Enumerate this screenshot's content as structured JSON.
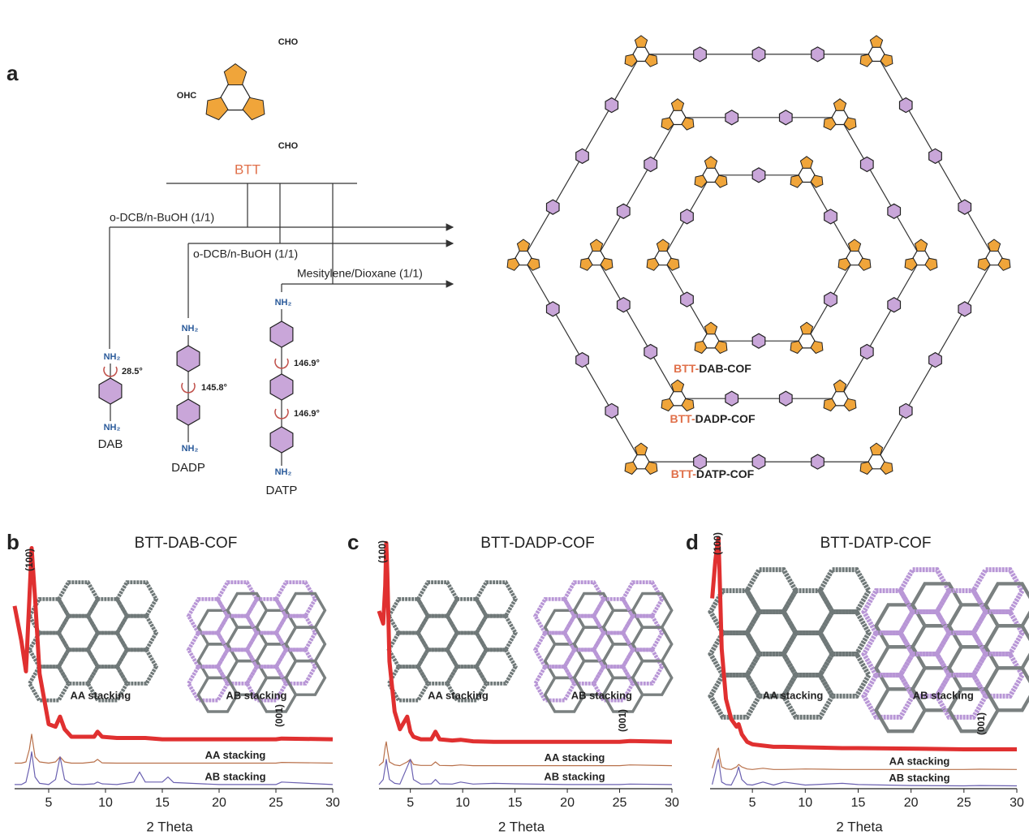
{
  "panel_a": {
    "label": "a",
    "btt": {
      "ohc": "OHC",
      "cho": [
        "CHO",
        "CHO"
      ],
      "name": "BTT"
    },
    "conditions": [
      "o-DCB/n-BuOH (1/1)",
      "o-DCB/n-BuOH (1/1)",
      "Mesitylene/Dioxane (1/1)"
    ],
    "monomers": [
      {
        "name": "DAB",
        "amines": [
          "NH₂",
          "NH₂"
        ],
        "angles": [
          "28.5°"
        ]
      },
      {
        "name": "DADP",
        "amines": [
          "NH₂",
          "NH₂"
        ],
        "angles": [
          "145.8°"
        ]
      },
      {
        "name": "DATP",
        "amines": [
          "NH₂",
          "NH₂"
        ],
        "angles": [
          "146.9°",
          "146.9°"
        ]
      }
    ],
    "cofs": [
      {
        "prefix": "BTT-",
        "name": "DAB-COF"
      },
      {
        "prefix": "BTT-",
        "name": "DADP-COF"
      },
      {
        "prefix": "BTT-",
        "name": "DATP-COF"
      }
    ]
  },
  "chart_data": [
    {
      "type": "line",
      "panel": "b",
      "title": "BTT-DAB-COF",
      "x_label": "2 Theta",
      "annotations": [
        "(100)",
        "(001)"
      ],
      "inset_labels": [
        "AA stacking",
        "AB stacking"
      ],
      "xlim": [
        2,
        30
      ],
      "xticks": [
        5,
        10,
        15,
        20,
        25,
        30
      ],
      "ylim": [
        0,
        100
      ],
      "x": [
        2,
        2.6,
        3.0,
        3.3,
        3.5,
        3.8,
        4.2,
        5,
        5.6,
        6.0,
        6.4,
        7,
        8,
        9,
        9.3,
        9.7,
        11,
        12.5,
        13,
        13.5,
        15,
        15.5,
        16,
        20,
        25,
        25.5,
        30
      ],
      "series": [
        {
          "color": "#e03030",
          "values": [
            72,
            58,
            46,
            75,
            95,
            75,
            45,
            25,
            24,
            28,
            23,
            20,
            20,
            20,
            22,
            20,
            19.5,
            19.5,
            19.5,
            19.5,
            19,
            19,
            19,
            19,
            19,
            19.3,
            19
          ]
        },
        {
          "name": "AA stacking",
          "color": "#b8704a",
          "values": [
            9.5,
            9.5,
            10,
            15,
            21,
            12,
            10,
            9.5,
            10,
            12,
            10,
            9.5,
            9.5,
            10,
            11,
            9.6,
            9.5,
            9.5,
            9.5,
            9.5,
            9.5,
            9.5,
            9.5,
            9.5,
            9.5,
            9.8,
            9.5
          ]
        },
        {
          "name": "AB stacking",
          "color": "#6a60b0",
          "values": [
            1,
            1,
            2,
            8,
            14,
            4,
            1.5,
            1,
            3,
            12,
            3,
            1.2,
            1,
            1.3,
            2,
            1.3,
            1,
            2,
            6,
            2,
            2,
            4,
            1.8,
            1,
            1,
            2,
            1
          ]
        }
      ]
    },
    {
      "type": "line",
      "panel": "c",
      "title": "BTT-DADP-COF",
      "x_label": "2 Theta",
      "annotations": [
        "(100)",
        "(001)"
      ],
      "inset_labels": [
        "AA stacking",
        "AB stacking"
      ],
      "xlim": [
        2,
        30
      ],
      "xticks": [
        5,
        10,
        15,
        20,
        25,
        30
      ],
      "ylim": [
        0,
        100
      ],
      "x": [
        2,
        2.4,
        2.6,
        2.7,
        2.8,
        3,
        3.5,
        4,
        4.7,
        5,
        5.3,
        6,
        7,
        7.4,
        7.8,
        9,
        9.8,
        11,
        13,
        15,
        20,
        25,
        26,
        30
      ],
      "series": [
        {
          "color": "#e03030",
          "values": [
            70,
            65,
            80,
            97,
            85,
            50,
            30,
            23,
            28,
            22,
            20,
            19,
            19,
            22,
            19,
            18.5,
            18.8,
            18.2,
            18,
            18,
            18,
            18,
            18.3,
            18
          ]
        },
        {
          "name": "AA stacking",
          "color": "#b8704a",
          "values": [
            8.5,
            10,
            16,
            18,
            15,
            10,
            8.8,
            8.5,
            10,
            11,
            9,
            8.6,
            8.6,
            10,
            8.6,
            8.5,
            8.8,
            8.5,
            8.5,
            8.5,
            8.5,
            8.5,
            8.8,
            8.5
          ]
        },
        {
          "name": "AB stacking",
          "color": "#6a60b0",
          "values": [
            1,
            3,
            8,
            11,
            8,
            3,
            1.5,
            1.2,
            8,
            11,
            3,
            1.2,
            1.3,
            3,
            1.3,
            1.2,
            2,
            1.2,
            1.5,
            1.3,
            1,
            1,
            1.2,
            1
          ]
        }
      ]
    },
    {
      "type": "line",
      "panel": "d",
      "title": "BTT-DATP-COF",
      "x_label": "2 Theta",
      "annotations": [
        "(100)",
        "(001)"
      ],
      "inset_labels": [
        "AA stacking",
        "AB stacking"
      ],
      "xlim": [
        1,
        30
      ],
      "xticks": [
        5,
        10,
        15,
        20,
        25,
        30
      ],
      "ylim": [
        0,
        100
      ],
      "x": [
        1.2,
        1.5,
        1.7,
        1.8,
        1.9,
        2.1,
        2.5,
        3,
        3.5,
        3.7,
        4,
        4.5,
        5,
        6,
        7,
        8,
        10,
        13.5,
        15,
        20,
        25,
        26.5,
        30
      ],
      "series": [
        {
          "color": "#e03030",
          "values": [
            75,
            90,
            97,
            99,
            85,
            55,
            35,
            27,
            24,
            25,
            21,
            18,
            17,
            16.5,
            16,
            16,
            15.8,
            15.5,
            15.5,
            15.3,
            15,
            15,
            15
          ]
        },
        {
          "name": "AA stacking",
          "color": "#b8704a",
          "values": [
            7.5,
            12,
            15,
            15.5,
            12,
            8,
            7.2,
            7,
            8,
            9,
            8,
            7.2,
            7,
            7.5,
            7,
            7,
            7.2,
            7,
            7,
            7,
            7,
            7.1,
            7
          ]
        },
        {
          "name": "AB stacking",
          "color": "#6a60b0",
          "values": [
            1,
            6,
            10,
            11,
            8,
            2,
            1,
            0.8,
            5,
            8,
            3,
            1,
            0.8,
            2,
            0.8,
            2,
            0.8,
            1.5,
            1,
            0.6,
            0.5,
            0.6,
            0.5
          ]
        }
      ]
    }
  ]
}
